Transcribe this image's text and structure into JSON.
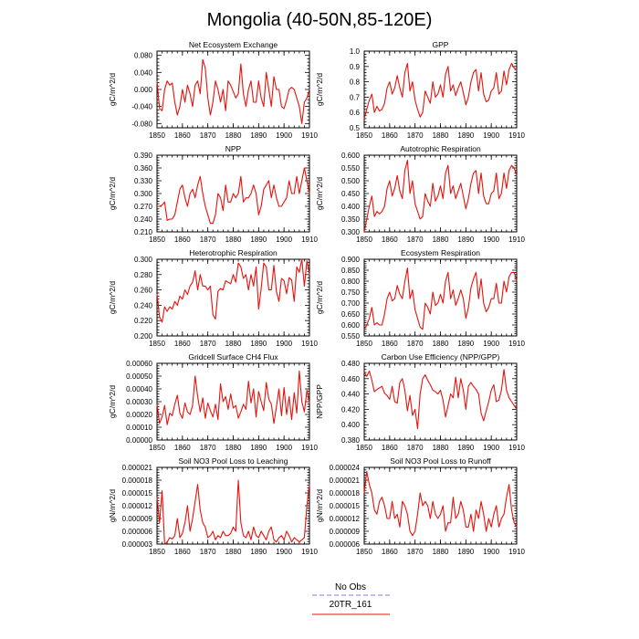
{
  "figure": {
    "title": "Mongolia (40-50N,85-120E)",
    "legend": [
      {
        "label": "No Obs",
        "color": "#7a7aee",
        "style": "dashed"
      },
      {
        "label": "20TR_161",
        "color": "#e8120c",
        "style": "solid"
      }
    ]
  },
  "chart_data": [
    {
      "type": "line",
      "title": "Net Ecosystem Exchange",
      "ylabel": "gC/m^2/d",
      "xlim": [
        1850,
        1910
      ],
      "ylim": [
        -0.09,
        0.09
      ],
      "xticks": [
        1850,
        1860,
        1870,
        1880,
        1890,
        1900,
        1910
      ],
      "yticks": [
        -0.08,
        -0.04,
        0.0,
        0.04,
        0.08
      ],
      "ytick_labels": [
        "-0.080",
        "-0.040",
        "0.000",
        "0.040",
        "0.080"
      ],
      "series": [
        {
          "name": "20TR_161",
          "color": "#e8120c",
          "x0": 1850,
          "dx": 1,
          "values": [
            0.02,
            -0.045,
            -0.05,
            0.0,
            0.02,
            0.01,
            0.015,
            -0.03,
            -0.06,
            -0.04,
            0.0,
            -0.03,
            0.01,
            -0.01,
            -0.04,
            0.01,
            0.02,
            -0.01,
            0.07,
            0.05,
            -0.02,
            -0.06,
            -0.03,
            0.02,
            0.0,
            -0.03,
            0.0,
            -0.05,
            0.02,
            0.01,
            -0.005,
            -0.02,
            -0.01,
            0.06,
            -0.01,
            -0.04,
            0.0,
            0.02,
            -0.03,
            -0.03,
            0.02,
            -0.02,
            -0.04,
            0.04,
            0.0,
            -0.04,
            0.03,
            0.0,
            0.0,
            -0.04,
            -0.045,
            -0.025,
            0.0,
            0.005,
            0.0,
            -0.02,
            -0.04,
            -0.08,
            -0.03,
            -0.02,
            0.0
          ]
        }
      ]
    },
    {
      "type": "line",
      "title": "GPP",
      "ylabel": "gC/m^2/d",
      "xlim": [
        1850,
        1910
      ],
      "ylim": [
        0.5,
        1.0
      ],
      "xticks": [
        1850,
        1860,
        1870,
        1880,
        1890,
        1900,
        1910
      ],
      "yticks": [
        0.5,
        0.6,
        0.7,
        0.8,
        0.9,
        1.0
      ],
      "ytick_labels": [
        "0.5",
        "0.6",
        "0.7",
        "0.8",
        "0.9",
        "1.0"
      ],
      "series": [
        {
          "name": "20TR_161",
          "color": "#e8120c",
          "x0": 1850,
          "dx": 1,
          "values": [
            0.56,
            0.62,
            0.68,
            0.72,
            0.6,
            0.64,
            0.61,
            0.62,
            0.66,
            0.76,
            0.8,
            0.72,
            0.76,
            0.84,
            0.76,
            0.7,
            0.86,
            0.92,
            0.74,
            0.8,
            0.68,
            0.62,
            0.57,
            0.6,
            0.74,
            0.7,
            0.66,
            0.8,
            0.7,
            0.72,
            0.78,
            0.7,
            0.85,
            0.9,
            0.74,
            0.78,
            0.71,
            0.76,
            0.8,
            0.73,
            0.65,
            0.7,
            0.8,
            0.86,
            0.88,
            0.74,
            0.86,
            0.72,
            0.67,
            0.68,
            0.74,
            0.76,
            0.86,
            0.72,
            0.74,
            0.87,
            0.78,
            0.88,
            0.92,
            0.89,
            0.88
          ]
        }
      ]
    },
    {
      "type": "line",
      "title": "NPP",
      "ylabel": "gC/m^2/d",
      "xlim": [
        1850,
        1910
      ],
      "ylim": [
        0.21,
        0.39
      ],
      "xticks": [
        1850,
        1860,
        1870,
        1880,
        1890,
        1900,
        1910
      ],
      "yticks": [
        0.21,
        0.24,
        0.27,
        0.3,
        0.33,
        0.36,
        0.39
      ],
      "ytick_labels": [
        "0.210",
        "0.240",
        "0.270",
        "0.300",
        "0.330",
        "0.360",
        "0.390"
      ],
      "series": [
        {
          "name": "20TR_161",
          "color": "#e8120c",
          "x0": 1850,
          "dx": 1,
          "values": [
            0.27,
            0.27,
            0.273,
            0.28,
            0.237,
            0.24,
            0.24,
            0.25,
            0.28,
            0.31,
            0.32,
            0.29,
            0.27,
            0.3,
            0.31,
            0.29,
            0.32,
            0.34,
            0.3,
            0.27,
            0.25,
            0.23,
            0.23,
            0.25,
            0.3,
            0.29,
            0.26,
            0.32,
            0.28,
            0.28,
            0.3,
            0.29,
            0.3,
            0.34,
            0.28,
            0.29,
            0.29,
            0.3,
            0.32,
            0.3,
            0.25,
            0.27,
            0.31,
            0.32,
            0.33,
            0.29,
            0.32,
            0.29,
            0.27,
            0.27,
            0.28,
            0.29,
            0.33,
            0.3,
            0.3,
            0.34,
            0.3,
            0.33,
            0.36,
            0.33,
            0.3
          ]
        }
      ]
    },
    {
      "type": "line",
      "title": "Autotrophic Respiration",
      "ylabel": "gC/m^2/d",
      "xlim": [
        1850,
        1910
      ],
      "ylim": [
        0.3,
        0.6
      ],
      "xticks": [
        1850,
        1860,
        1870,
        1880,
        1890,
        1900,
        1910
      ],
      "yticks": [
        0.3,
        0.35,
        0.4,
        0.45,
        0.5,
        0.55,
        0.6
      ],
      "ytick_labels": [
        "0.300",
        "0.350",
        "0.400",
        "0.450",
        "0.500",
        "0.550",
        "0.600"
      ],
      "series": [
        {
          "name": "20TR_161",
          "color": "#e8120c",
          "x0": 1850,
          "dx": 1,
          "values": [
            0.3,
            0.35,
            0.4,
            0.44,
            0.36,
            0.38,
            0.37,
            0.38,
            0.4,
            0.47,
            0.5,
            0.44,
            0.47,
            0.52,
            0.46,
            0.43,
            0.54,
            0.58,
            0.45,
            0.5,
            0.41,
            0.38,
            0.35,
            0.36,
            0.45,
            0.42,
            0.4,
            0.49,
            0.42,
            0.44,
            0.48,
            0.43,
            0.53,
            0.56,
            0.45,
            0.48,
            0.43,
            0.46,
            0.49,
            0.44,
            0.39,
            0.43,
            0.49,
            0.53,
            0.54,
            0.45,
            0.53,
            0.44,
            0.41,
            0.41,
            0.45,
            0.46,
            0.53,
            0.43,
            0.45,
            0.53,
            0.47,
            0.54,
            0.56,
            0.55,
            0.52
          ]
        }
      ]
    },
    {
      "type": "line",
      "title": "Heterotrophic Respiration",
      "ylabel": "gC/m^2/d",
      "xlim": [
        1850,
        1910
      ],
      "ylim": [
        0.2,
        0.3
      ],
      "xticks": [
        1850,
        1860,
        1870,
        1880,
        1890,
        1900,
        1910
      ],
      "yticks": [
        0.2,
        0.22,
        0.24,
        0.26,
        0.28,
        0.3
      ],
      "ytick_labels": [
        "0.200",
        "0.220",
        "0.240",
        "0.260",
        "0.280",
        "0.300"
      ],
      "series": [
        {
          "name": "20TR_161",
          "color": "#e8120c",
          "x0": 1850,
          "dx": 1,
          "values": [
            0.255,
            0.225,
            0.218,
            0.238,
            0.232,
            0.238,
            0.235,
            0.245,
            0.24,
            0.252,
            0.248,
            0.26,
            0.254,
            0.265,
            0.27,
            0.285,
            0.26,
            0.28,
            0.265,
            0.265,
            0.26,
            0.265,
            0.228,
            0.222,
            0.258,
            0.262,
            0.26,
            0.272,
            0.27,
            0.268,
            0.28,
            0.27,
            0.295,
            0.29,
            0.275,
            0.28,
            0.26,
            0.28,
            0.265,
            0.29,
            0.235,
            0.262,
            0.295,
            0.29,
            0.26,
            0.26,
            0.292,
            0.258,
            0.245,
            0.275,
            0.272,
            0.255,
            0.276,
            0.273,
            0.245,
            0.29,
            0.283,
            0.3,
            0.265,
            0.298,
            0.28
          ]
        }
      ]
    },
    {
      "type": "line",
      "title": "Ecosystem Respiration",
      "ylabel": "gC/m^2/d",
      "xlim": [
        1850,
        1910
      ],
      "ylim": [
        0.55,
        0.9
      ],
      "xticks": [
        1850,
        1860,
        1870,
        1880,
        1890,
        1900,
        1910
      ],
      "yticks": [
        0.55,
        0.6,
        0.65,
        0.7,
        0.75,
        0.8,
        0.85,
        0.9
      ],
      "ytick_labels": [
        "0.550",
        "0.600",
        "0.650",
        "0.700",
        "0.750",
        "0.800",
        "0.850",
        "0.900"
      ],
      "series": [
        {
          "name": "20TR_161",
          "color": "#e8120c",
          "x0": 1850,
          "dx": 1,
          "values": [
            0.58,
            0.6,
            0.63,
            0.68,
            0.6,
            0.61,
            0.6,
            0.6,
            0.65,
            0.72,
            0.75,
            0.71,
            0.72,
            0.78,
            0.74,
            0.72,
            0.8,
            0.86,
            0.72,
            0.76,
            0.67,
            0.63,
            0.59,
            0.58,
            0.7,
            0.68,
            0.65,
            0.75,
            0.69,
            0.7,
            0.74,
            0.7,
            0.8,
            0.84,
            0.72,
            0.76,
            0.69,
            0.72,
            0.76,
            0.72,
            0.63,
            0.68,
            0.77,
            0.81,
            0.84,
            0.72,
            0.81,
            0.7,
            0.66,
            0.68,
            0.72,
            0.72,
            0.79,
            0.7,
            0.7,
            0.8,
            0.75,
            0.82,
            0.84,
            0.84,
            0.8
          ]
        }
      ]
    },
    {
      "type": "line",
      "title": "Gridcell Surface CH4 Flux",
      "ylabel": "gC/m^2/d",
      "xlim": [
        1850,
        1910
      ],
      "ylim": [
        0.0,
        0.0006
      ],
      "xticks": [
        1850,
        1860,
        1870,
        1880,
        1890,
        1900,
        1910
      ],
      "yticks": [
        0.0,
        0.0001,
        0.0002,
        0.0003,
        0.0004,
        0.0005,
        0.0006
      ],
      "ytick_labels": [
        "0.00000",
        "0.00010",
        "0.00020",
        "0.00030",
        "0.00040",
        "0.00050",
        "0.00060"
      ],
      "series": [
        {
          "name": "20TR_161",
          "color": "#e8120c",
          "x0": 1850,
          "dx": 1,
          "values": [
            0.00028,
            0.00013,
            0.00018,
            0.00027,
            0.00012,
            0.00021,
            0.00019,
            0.00028,
            0.00035,
            0.00021,
            0.00017,
            0.00029,
            0.00022,
            0.0002,
            0.00027,
            0.0005,
            0.00034,
            0.00022,
            0.00033,
            0.00017,
            0.00029,
            0.00023,
            0.00018,
            0.00028,
            0.00016,
            0.00044,
            0.0003,
            0.00034,
            0.00024,
            0.00036,
            0.00025,
            0.00027,
            0.00017,
            0.00022,
            0.00028,
            0.00024,
            0.00046,
            0.00029,
            0.0004,
            0.00018,
            0.00038,
            0.0003,
            0.00023,
            0.00045,
            0.00032,
            0.00028,
            0.00013,
            0.00026,
            0.0004,
            0.00019,
            0.00041,
            0.0002,
            0.00034,
            0.00016,
            0.00037,
            0.00021,
            0.00054,
            0.0003,
            0.00022,
            0.00039,
            0.00029
          ]
        }
      ]
    },
    {
      "type": "line",
      "title": "Carbon Use Efficiency (NPP/GPP)",
      "ylabel": "NPP/GPP",
      "xlim": [
        1850,
        1910
      ],
      "ylim": [
        0.38,
        0.48
      ],
      "xticks": [
        1850,
        1860,
        1870,
        1880,
        1890,
        1900,
        1910
      ],
      "yticks": [
        0.38,
        0.4,
        0.42,
        0.44,
        0.46,
        0.48
      ],
      "ytick_labels": [
        "0.380",
        "0.400",
        "0.420",
        "0.440",
        "0.460",
        "0.480"
      ],
      "series": [
        {
          "name": "20TR_161",
          "color": "#e8120c",
          "x0": 1850,
          "dx": 1,
          "values": [
            0.468,
            0.463,
            0.47,
            0.458,
            0.443,
            0.446,
            0.448,
            0.45,
            0.441,
            0.438,
            0.433,
            0.45,
            0.43,
            0.428,
            0.455,
            0.46,
            0.445,
            0.418,
            0.438,
            0.412,
            0.42,
            0.395,
            0.44,
            0.46,
            0.465,
            0.458,
            0.452,
            0.445,
            0.443,
            0.44,
            0.445,
            0.432,
            0.41,
            0.425,
            0.44,
            0.435,
            0.462,
            0.435,
            0.46,
            0.445,
            0.42,
            0.45,
            0.455,
            0.45,
            0.446,
            0.44,
            0.415,
            0.405,
            0.418,
            0.43,
            0.445,
            0.452,
            0.43,
            0.432,
            0.445,
            0.472,
            0.445,
            0.435,
            0.43,
            0.425,
            0.42
          ]
        }
      ]
    },
    {
      "type": "line",
      "title": "Soil NO3 Pool Loss to Leaching",
      "ylabel": "gN/m^2/d",
      "xlim": [
        1850,
        1910
      ],
      "ylim": [
        3e-06,
        2.1e-05
      ],
      "xticks": [
        1850,
        1860,
        1870,
        1880,
        1890,
        1900,
        1910
      ],
      "yticks": [
        3e-06,
        6e-06,
        9e-06,
        1.2e-05,
        1.5e-05,
        1.8e-05,
        2.1e-05
      ],
      "ytick_labels": [
        "0.000003",
        "0.000006",
        "0.000009",
        "0.000012",
        "0.000015",
        "0.000018",
        "0.000021"
      ],
      "series": [
        {
          "name": "20TR_161",
          "color": "#e8120c",
          "x0": 1850,
          "dx": 1,
          "values": [
            1.4e-05,
            8e-06,
            1.55e-05,
            3e-06,
            3.5e-06,
            4.5e-06,
            4.2e-06,
            5e-06,
            9e-06,
            4.5e-06,
            5.5e-06,
            8e-06,
            1.2e-05,
            6e-06,
            9e-06,
            1.3e-05,
            1.7e-05,
            1.1e-05,
            8e-06,
            7e-06,
            4.5e-06,
            5e-06,
            6e-06,
            4e-06,
            5e-06,
            4.5e-06,
            6e-06,
            5e-06,
            5e-06,
            5.5e-06,
            7e-06,
            6e-06,
            1.8e-05,
            8e-06,
            5e-06,
            4.5e-06,
            6e-06,
            4e-06,
            7e-06,
            5e-06,
            4.5e-06,
            6e-06,
            5e-06,
            4e-06,
            6e-06,
            7e-06,
            4e-06,
            3.5e-06,
            4.5e-06,
            5e-06,
            4e-06,
            6e-06,
            5e-06,
            3.5e-06,
            4.5e-06,
            4e-06,
            3.5e-06,
            4e-06,
            4.5e-06,
            1.2e-05,
            1.7e-05
          ]
        }
      ]
    },
    {
      "type": "line",
      "title": "Soil NO3 Pool Loss to Runoff",
      "ylabel": "gN/m^2/d",
      "xlim": [
        1850,
        1910
      ],
      "ylim": [
        6e-06,
        2.4e-05
      ],
      "xticks": [
        1850,
        1860,
        1870,
        1880,
        1890,
        1900,
        1910
      ],
      "yticks": [
        6e-06,
        9e-06,
        1.2e-05,
        1.5e-05,
        1.8e-05,
        2.1e-05,
        2.4e-05
      ],
      "ytick_labels": [
        "0.000006",
        "0.000009",
        "0.000012",
        "0.000015",
        "0.000018",
        "0.000021",
        "0.000024"
      ],
      "series": [
        {
          "name": "20TR_161",
          "color": "#e8120c",
          "x0": 1850,
          "dx": 1,
          "values": [
            1.8e-05,
            2.3e-05,
            2e-05,
            1.8e-05,
            1.4e-05,
            1.3e-05,
            1.6e-05,
            1.7e-05,
            1.5e-05,
            1.2e-05,
            1.2e-05,
            1.6e-05,
            1.2e-05,
            1.3e-05,
            1e-05,
            1.6e-05,
            1.5e-05,
            1.3e-05,
            9e-06,
            8e-06,
            9e-06,
            1.3e-05,
            1.8e-05,
            1.5e-05,
            1.6e-05,
            1.5e-05,
            1.2e-05,
            1.6e-05,
            1.3e-05,
            1.2e-05,
            1.3e-05,
            1.5e-05,
            9e-06,
            1.1e-05,
            1.1e-05,
            1.7e-05,
            1.2e-05,
            1.3e-05,
            1.6e-05,
            1.4e-05,
            1e-05,
            1e-05,
            1.3e-05,
            9e-06,
            1.4e-05,
            1.2e-05,
            1.6e-05,
            1.3e-05,
            9e-06,
            1.2e-05,
            1e-05,
            1.3e-05,
            1.5e-05,
            1e-05,
            1.2e-05,
            1.3e-05,
            1.7e-05,
            2e-05,
            1.4e-05,
            1.1e-05,
            1e-05
          ]
        }
      ]
    }
  ]
}
